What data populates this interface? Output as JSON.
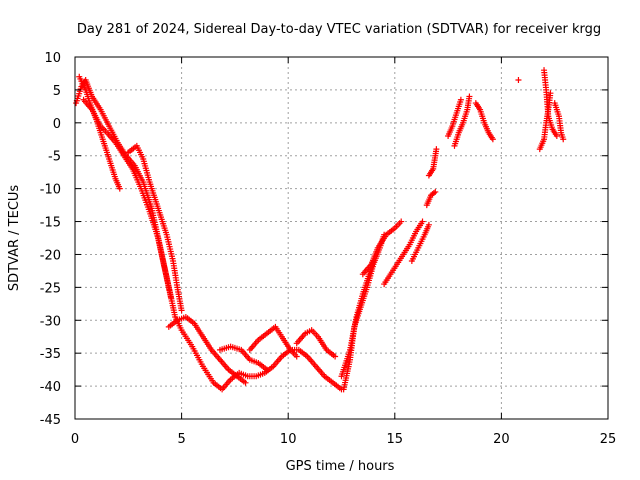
{
  "chart_data": {
    "type": "scatter",
    "title": "Day 281 of 2024, Sidereal Day-to-day VTEC variation (SDTVAR) for receiver krgg",
    "xlabel": "GPS time / hours",
    "ylabel": "SDTVAR / TECUs",
    "xlim": [
      0,
      25
    ],
    "ylim": [
      -45,
      10
    ],
    "xticks": [
      0,
      5,
      10,
      15,
      20,
      25
    ],
    "yticks": [
      10,
      5,
      0,
      -5,
      -10,
      -15,
      -20,
      -25,
      -30,
      -35,
      -40,
      -45
    ],
    "grid": true,
    "marker": "+",
    "color": "#ff0000",
    "series": [
      {
        "name": "SDTVAR",
        "tracks": [
          {
            "points": [
              [
                0.05,
                3.0
              ],
              [
                0.3,
                5.5
              ],
              [
                0.5,
                6.5
              ],
              [
                0.8,
                4.0
              ],
              [
                1.2,
                2.0
              ],
              [
                1.6,
                -0.5
              ],
              [
                2.0,
                -3.0
              ],
              [
                2.4,
                -5.0
              ],
              [
                2.8,
                -6.5
              ],
              [
                3.2,
                -9.0
              ],
              [
                3.6,
                -13.0
              ],
              [
                4.0,
                -19.0
              ],
              [
                4.4,
                -25.0
              ],
              [
                4.7,
                -29.5
              ],
              [
                5.0,
                -31.5
              ],
              [
                5.5,
                -34.0
              ],
              [
                6.0,
                -37.0
              ],
              [
                6.5,
                -39.5
              ],
              [
                6.9,
                -40.5
              ],
              [
                7.3,
                -39.0
              ],
              [
                7.7,
                -38.0
              ],
              [
                8.1,
                -38.5
              ],
              [
                8.5,
                -38.5
              ],
              [
                8.9,
                -38.0
              ],
              [
                9.3,
                -37.0
              ],
              [
                9.7,
                -35.5
              ],
              [
                10.1,
                -34.5
              ],
              [
                10.5,
                -34.5
              ],
              [
                10.9,
                -35.5
              ],
              [
                11.3,
                -37.0
              ],
              [
                11.7,
                -38.5
              ],
              [
                12.1,
                -39.5
              ],
              [
                12.5,
                -40.5
              ]
            ]
          },
          {
            "points": [
              [
                0.2,
                7.0
              ],
              [
                0.5,
                5.0
              ],
              [
                0.7,
                3.0
              ],
              [
                1.0,
                0.5
              ],
              [
                1.3,
                -2.5
              ],
              [
                1.6,
                -5.5
              ],
              [
                1.9,
                -8.5
              ],
              [
                2.1,
                -10.0
              ]
            ]
          },
          {
            "points": [
              [
                0.4,
                3.5
              ],
              [
                0.8,
                2.0
              ],
              [
                1.2,
                -0.5
              ],
              [
                1.5,
                -1.5
              ],
              [
                1.9,
                -3.0
              ],
              [
                2.3,
                -5.0
              ],
              [
                2.7,
                -7.0
              ],
              [
                3.1,
                -10.0
              ],
              [
                3.5,
                -13.5
              ],
              [
                3.9,
                -17.5
              ],
              [
                4.2,
                -22.0
              ],
              [
                4.5,
                -26.5
              ]
            ]
          },
          {
            "points": [
              [
                2.5,
                -4.5
              ],
              [
                2.9,
                -3.5
              ],
              [
                3.2,
                -5.5
              ],
              [
                3.5,
                -9.0
              ],
              [
                3.8,
                -12.0
              ],
              [
                4.0,
                -14.0
              ],
              [
                4.3,
                -17.0
              ],
              [
                4.6,
                -21.0
              ],
              [
                4.8,
                -25.0
              ],
              [
                5.0,
                -28.5
              ]
            ]
          },
          {
            "points": [
              [
                4.4,
                -31.0
              ],
              [
                4.8,
                -30.0
              ],
              [
                5.2,
                -29.5
              ],
              [
                5.6,
                -30.5
              ],
              [
                6.0,
                -32.5
              ],
              [
                6.4,
                -34.5
              ],
              [
                6.8,
                -36.0
              ],
              [
                7.2,
                -37.5
              ],
              [
                7.6,
                -38.5
              ],
              [
                8.0,
                -39.5
              ]
            ]
          },
          {
            "points": [
              [
                6.8,
                -34.5
              ],
              [
                7.3,
                -34.0
              ],
              [
                7.8,
                -34.5
              ],
              [
                8.2,
                -36.0
              ],
              [
                8.6,
                -36.5
              ],
              [
                9.0,
                -37.5
              ]
            ]
          },
          {
            "points": [
              [
                8.2,
                -34.5
              ],
              [
                8.6,
                -33.0
              ],
              [
                9.0,
                -32.0
              ],
              [
                9.4,
                -31.0
              ],
              [
                9.7,
                -32.5
              ],
              [
                10.1,
                -34.5
              ],
              [
                10.4,
                -35.5
              ]
            ]
          },
          {
            "points": [
              [
                10.4,
                -33.5
              ],
              [
                10.8,
                -32.0
              ],
              [
                11.1,
                -31.5
              ],
              [
                11.4,
                -32.5
              ],
              [
                11.8,
                -34.5
              ],
              [
                12.2,
                -35.5
              ]
            ]
          },
          {
            "points": [
              [
                12.6,
                -40.5
              ],
              [
                12.9,
                -36.0
              ],
              [
                13.1,
                -31.0
              ],
              [
                13.4,
                -28.0
              ],
              [
                13.7,
                -25.0
              ],
              [
                14.0,
                -21.5
              ],
              [
                14.3,
                -19.0
              ],
              [
                14.5,
                -17.0
              ]
            ]
          },
          {
            "points": [
              [
                12.5,
                -38.5
              ],
              [
                12.9,
                -34.5
              ],
              [
                13.2,
                -29.5
              ],
              [
                13.5,
                -26.0
              ],
              [
                13.8,
                -23.0
              ],
              [
                14.0,
                -21.0
              ]
            ]
          },
          {
            "points": [
              [
                13.5,
                -23.0
              ],
              [
                13.9,
                -21.5
              ],
              [
                14.2,
                -19.0
              ],
              [
                14.6,
                -17.0
              ],
              [
                15.0,
                -16.0
              ],
              [
                15.3,
                -15.0
              ]
            ]
          },
          {
            "points": [
              [
                14.5,
                -24.5
              ],
              [
                14.8,
                -23.0
              ],
              [
                15.1,
                -21.5
              ],
              [
                15.4,
                -20.0
              ],
              [
                15.7,
                -18.5
              ],
              [
                16.0,
                -16.5
              ],
              [
                16.3,
                -15.0
              ]
            ]
          },
          {
            "points": [
              [
                15.8,
                -21.0
              ],
              [
                16.1,
                -19.0
              ],
              [
                16.4,
                -17.0
              ],
              [
                16.6,
                -15.5
              ]
            ]
          },
          {
            "points": [
              [
                16.5,
                -12.5
              ],
              [
                16.7,
                -11.0
              ],
              [
                16.9,
                -10.5
              ]
            ]
          },
          {
            "points": [
              [
                16.6,
                -8.0
              ],
              [
                16.8,
                -7.0
              ],
              [
                16.95,
                -4.0
              ]
            ]
          },
          {
            "points": [
              [
                17.5,
                -2.0
              ],
              [
                17.7,
                -0.5
              ],
              [
                17.9,
                1.5
              ],
              [
                18.1,
                3.5
              ]
            ]
          },
          {
            "points": [
              [
                17.8,
                -3.5
              ],
              [
                18.0,
                -1.5
              ],
              [
                18.2,
                0.0
              ],
              [
                18.4,
                2.0
              ],
              [
                18.5,
                4.0
              ]
            ]
          },
          {
            "points": [
              [
                18.8,
                3.0
              ],
              [
                19.0,
                2.0
              ],
              [
                19.2,
                0.0
              ],
              [
                19.4,
                -1.5
              ],
              [
                19.6,
                -2.5
              ]
            ]
          },
          {
            "points": [
              [
                20.8,
                6.5
              ]
            ]
          },
          {
            "points": [
              [
                21.8,
                -4.0
              ],
              [
                22.0,
                -2.5
              ],
              [
                22.1,
                0.0
              ],
              [
                22.2,
                2.0
              ],
              [
                22.3,
                4.5
              ]
            ]
          },
          {
            "points": [
              [
                22.0,
                8.0
              ],
              [
                22.1,
                5.0
              ],
              [
                22.2,
                1.0
              ],
              [
                22.4,
                -1.0
              ],
              [
                22.6,
                -2.0
              ]
            ]
          },
          {
            "points": [
              [
                22.5,
                3.0
              ],
              [
                22.7,
                1.0
              ],
              [
                22.8,
                -1.5
              ],
              [
                22.9,
                -2.5
              ]
            ]
          }
        ]
      }
    ]
  }
}
